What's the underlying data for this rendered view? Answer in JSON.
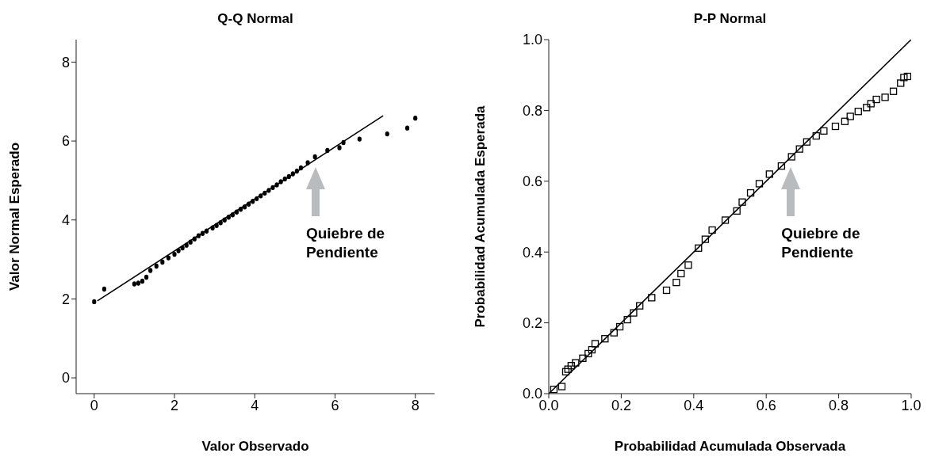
{
  "chart_data": [
    {
      "type": "scatter",
      "title": "Q-Q Normal",
      "xlabel": "Valor Observado",
      "ylabel": "Valor Normal Esperado",
      "xlim": [
        -0.45,
        8.48
      ],
      "xticks": [
        0,
        2,
        4,
        6,
        8
      ],
      "ylim": [
        -0.4,
        8.57
      ],
      "yticks": [
        0,
        2,
        4,
        6,
        8
      ],
      "series": [
        {
          "marker": "circle",
          "color": "#000000",
          "x": [
            0,
            0.25,
            1.0,
            1.1,
            1.2,
            1.3,
            1.4,
            1.55,
            1.7,
            1.85,
            2.0,
            2.1,
            2.2,
            2.3,
            2.4,
            2.5,
            2.6,
            2.7,
            2.8,
            2.95,
            3.05,
            3.15,
            3.25,
            3.35,
            3.45,
            3.55,
            3.65,
            3.75,
            3.85,
            3.95,
            4.05,
            4.15,
            4.25,
            4.35,
            4.45,
            4.55,
            4.65,
            4.75,
            4.85,
            4.95,
            5.05,
            5.15,
            5.32,
            5.5,
            5.81,
            6.11,
            6.21,
            6.61,
            7.3,
            7.8,
            8.0
          ],
          "values": [
            1.93,
            2.25,
            2.38,
            2.4,
            2.45,
            2.55,
            2.72,
            2.83,
            2.93,
            3.04,
            3.13,
            3.22,
            3.29,
            3.36,
            3.44,
            3.52,
            3.6,
            3.66,
            3.72,
            3.8,
            3.86,
            3.93,
            4.0,
            4.07,
            4.13,
            4.2,
            4.27,
            4.33,
            4.4,
            4.47,
            4.54,
            4.61,
            4.68,
            4.75,
            4.82,
            4.89,
            4.97,
            5.04,
            5.1,
            5.17,
            5.24,
            5.32,
            5.45,
            5.6,
            5.76,
            5.83,
            5.96,
            6.05,
            6.18,
            6.33,
            6.58
          ]
        },
        {
          "type": "line",
          "color": "#000000",
          "x": [
            0.08,
            7.2
          ],
          "values": [
            1.95,
            6.64
          ]
        }
      ],
      "annotations": [
        "Quiebre de\nPendiente"
      ]
    },
    {
      "type": "scatter",
      "title": "P-P Normal",
      "xlabel": "Probabilidad Acumulada Observada",
      "ylabel": "Probabilidad  Acumulada Esperada",
      "xlim": [
        0,
        1
      ],
      "xticks": [
        {
          "value": 0,
          "label": "0.0"
        },
        0.2,
        0.4,
        0.6,
        0.8,
        {
          "value": 1,
          "label": "1.0"
        }
      ],
      "ylim": [
        0,
        1
      ],
      "yticks": [
        {
          "value": 0,
          "label": "0.0"
        },
        0.2,
        0.4,
        0.6,
        0.8,
        {
          "value": 1,
          "label": "1.0"
        }
      ],
      "series": [
        {
          "marker": "square",
          "color": "#000000",
          "x": [
            0.014,
            0.036,
            0.047,
            0.053,
            0.062,
            0.074,
            0.094,
            0.109,
            0.119,
            0.128,
            0.155,
            0.18,
            0.196,
            0.217,
            0.234,
            0.251,
            0.284,
            0.325,
            0.352,
            0.365,
            0.385,
            0.413,
            0.432,
            0.451,
            0.487,
            0.519,
            0.534,
            0.557,
            0.581,
            0.609,
            0.642,
            0.67,
            0.692,
            0.712,
            0.738,
            0.759,
            0.791,
            0.817,
            0.832,
            0.854,
            0.877,
            0.889,
            0.904,
            0.928,
            0.951,
            0.971,
            0.98,
            0.99
          ],
          "values": [
            0.012,
            0.02,
            0.062,
            0.069,
            0.079,
            0.087,
            0.1,
            0.113,
            0.124,
            0.141,
            0.155,
            0.172,
            0.189,
            0.209,
            0.228,
            0.248,
            0.271,
            0.292,
            0.314,
            0.339,
            0.363,
            0.411,
            0.436,
            0.462,
            0.49,
            0.516,
            0.541,
            0.567,
            0.593,
            0.62,
            0.643,
            0.669,
            0.691,
            0.711,
            0.728,
            0.742,
            0.755,
            0.769,
            0.783,
            0.797,
            0.808,
            0.819,
            0.831,
            0.837,
            0.854,
            0.877,
            0.893,
            0.896
          ]
        },
        {
          "type": "line",
          "color": "#000000",
          "x": [
            0,
            1
          ],
          "values": [
            0,
            1
          ]
        }
      ],
      "annotations": [
        "Quiebre de\nPendiente"
      ]
    }
  ]
}
